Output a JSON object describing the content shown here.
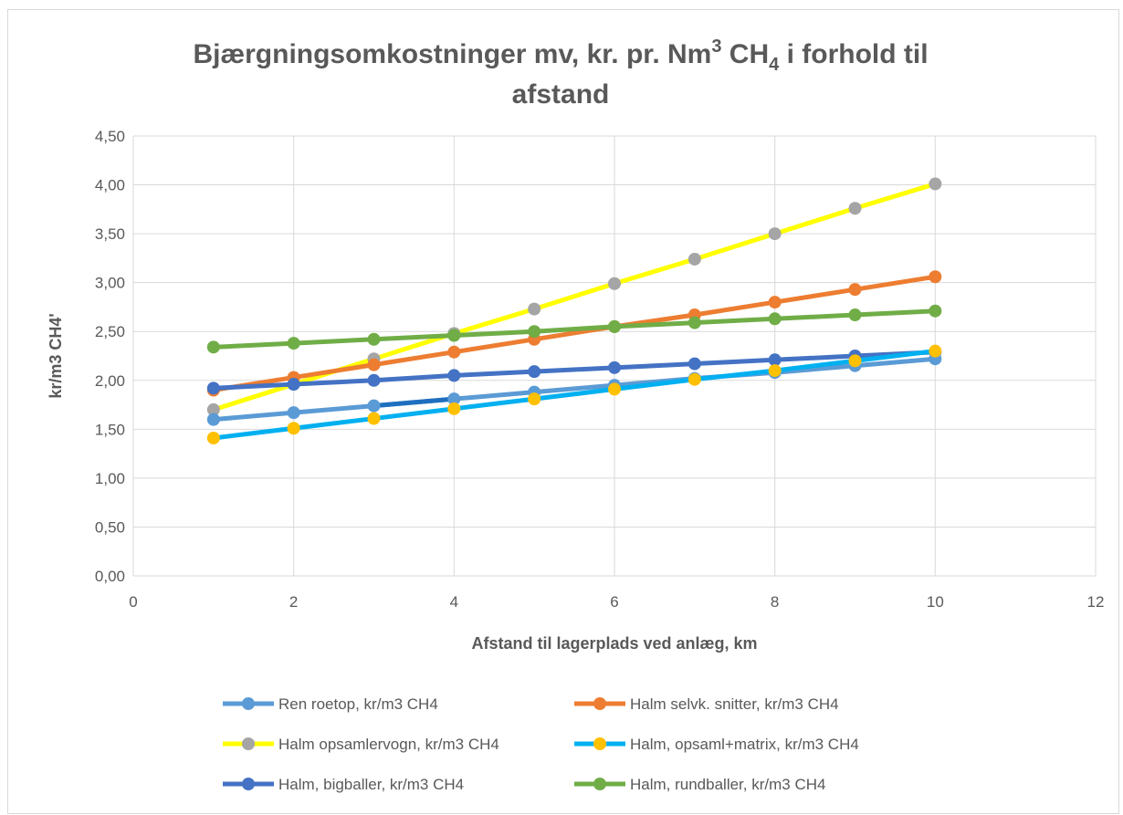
{
  "chart_data": {
    "type": "line",
    "title": {
      "part1": "Bjærgningsomkostninger mv, kr. pr. Nm",
      "sup": "3",
      "part2": " CH",
      "sub": "4",
      "part3": " i forhold til",
      "line2": "afstand"
    },
    "xlabel": "Afstand til lagerplads ved anlæg, km",
    "ylabel": "kr/m3 CH4'",
    "xlim": [
      0,
      12
    ],
    "ylim": [
      0,
      4.5
    ],
    "x_ticks": [
      0,
      2,
      4,
      6,
      8,
      10,
      12
    ],
    "x_tick_labels": [
      "0",
      "2",
      "4",
      "6",
      "8",
      "10",
      "12"
    ],
    "y_ticks": [
      0,
      0.5,
      1,
      1.5,
      2,
      2.5,
      3,
      3.5,
      4,
      4.5
    ],
    "y_tick_labels": [
      "0,00",
      "0,50",
      "1,00",
      "1,50",
      "2,00",
      "2,50",
      "3,00",
      "3,50",
      "4,00",
      "4,50"
    ],
    "grid": true,
    "legend_position": "bottom",
    "x": [
      1,
      2,
      3,
      4,
      5,
      6,
      7,
      8,
      9,
      10
    ],
    "series": [
      {
        "name": "Ren roetop, kr/m3 CH4",
        "line_color": "#5b9bd5",
        "marker_color": "#5b9bd5",
        "values": [
          1.6,
          1.67,
          1.74,
          1.81,
          1.88,
          1.95,
          2.02,
          2.08,
          2.15,
          2.22
        ]
      },
      {
        "name": "Halm selvk. snitter, kr/m3 CH4",
        "line_color": "#ed7d31",
        "marker_color": "#ed7d31",
        "values": [
          1.9,
          2.03,
          2.16,
          2.29,
          2.42,
          2.55,
          2.67,
          2.8,
          2.93,
          3.06
        ]
      },
      {
        "name": "Halm opsamlervogn, kr/m3 CH4",
        "line_color": "#ffff00",
        "marker_color": "#a5a5a5",
        "values": [
          1.7,
          1.96,
          2.22,
          2.48,
          2.73,
          2.99,
          3.24,
          3.5,
          3.76,
          4.01
        ]
      },
      {
        "name": "Halm, opsaml+matrix, kr/m3 CH4",
        "line_color": "#00b0f0",
        "marker_color": "#ffc000",
        "values": [
          1.41,
          1.51,
          1.61,
          1.71,
          1.81,
          1.91,
          2.01,
          2.1,
          2.2,
          2.3
        ]
      },
      {
        "name": "Halm, bigballer, kr/m3 CH4",
        "line_color": "#4472c4",
        "marker_color": "#4472c4",
        "values": [
          1.92,
          1.96,
          2.0,
          2.05,
          2.09,
          2.13,
          2.17,
          2.21,
          2.25,
          2.29
        ]
      },
      {
        "name": "Halm, rundballer, kr/m3 CH4",
        "line_color": "#70ad47",
        "marker_color": "#70ad47",
        "values": [
          2.34,
          2.38,
          2.42,
          2.46,
          2.5,
          2.55,
          2.59,
          2.63,
          2.67,
          2.71
        ]
      }
    ],
    "draw_order": [
      2,
      1,
      5,
      4,
      0,
      3
    ],
    "colors": {
      "grid": "#d9d9d9",
      "text": "#595959",
      "ren_roetop_dark_segment": "#1f6fbf"
    }
  }
}
